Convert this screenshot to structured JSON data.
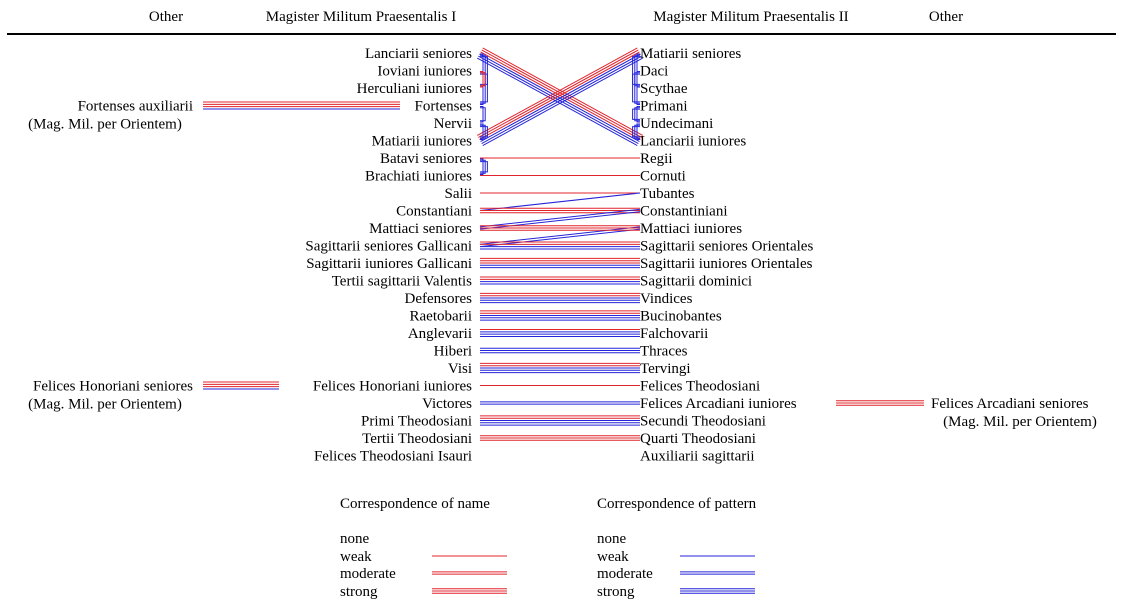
{
  "headers": {
    "other_left": "Other",
    "mm1": "Magister Militum Praesentalis I",
    "mm2": "Magister Militum Praesentalis II",
    "other_right": "Other"
  },
  "colors": {
    "name": "#e0242c",
    "pattern": "#2424d8"
  },
  "left_units": [
    "Lanciarii seniores",
    "Ioviani iuniores",
    "Herculiani iuniores",
    "Fortenses",
    "Nervii",
    "Matiarii iuniores",
    "Batavi seniores",
    "Brachiati iuniores",
    "Salii",
    "Constantiani",
    "Mattiaci seniores",
    "Sagittarii seniores Gallicani",
    "Sagittarii iuniores Gallicani",
    "Tertii sagittarii Valentis",
    "Defensores",
    "Raetobarii",
    "Anglevarii",
    "Hiberi",
    "Visi",
    "Felices Honoriani iuniores",
    "Victores",
    "Primi Theodosiani",
    "Tertii Theodosiani",
    "Felices Theodosiani Isauri"
  ],
  "right_units": [
    "Matiarii seniores",
    "Daci",
    "Scythae",
    "Primani",
    "Undecimani",
    "Lanciarii iuniores",
    "Regii",
    "Cornuti",
    "Tubantes",
    "Constantiniani",
    "Mattiaci iuniores",
    "Sagittarii seniores Orientales",
    "Sagittarii iuniores Orientales",
    "Sagittarii dominici",
    "Vindices",
    "Bucinobantes",
    "Falchovarii",
    "Thraces",
    "Tervingi",
    "Felices Theodosiani",
    "Felices Arcadiani iuniores",
    "Secundi Theodosiani",
    "Quarti Theodosiani",
    "Auxiliarii sagittarii"
  ],
  "other_units": [
    {
      "name": "Fortenses auxiliarii",
      "note": "(Mag. Mil. per Orientem)",
      "side": "left",
      "row": 3,
      "name_strength": 3,
      "pattern_strength": 1
    },
    {
      "name": "Felices Honoriani seniores",
      "note": "(Mag. Mil. per Orientem)",
      "side": "left",
      "row": 19,
      "name_strength": 3,
      "pattern_strength": 1
    },
    {
      "name": "Felices Arcadiani seniores",
      "note": "(Mag. Mil. per Orientem)",
      "side": "right",
      "row": 20,
      "name_strength": 3,
      "pattern_strength": 0
    }
  ],
  "cross_links": [
    {
      "from": 0,
      "to": 5,
      "name": 3,
      "pattern": 3
    },
    {
      "from": 5,
      "to": 0,
      "name": 3,
      "pattern": 3
    },
    {
      "from": 6,
      "to": 6,
      "name": 1,
      "pattern": 0
    },
    {
      "from": 7,
      "to": 7,
      "name": 1,
      "pattern": 0
    },
    {
      "from": 8,
      "to": 8,
      "name": 1,
      "pattern": 0
    },
    {
      "from": 9,
      "to": 8,
      "name": 0,
      "pattern": 1
    },
    {
      "from": 9,
      "to": 9,
      "name": 3,
      "pattern": 0
    },
    {
      "from": 10,
      "to": 9,
      "name": 0,
      "pattern": 2
    },
    {
      "from": 11,
      "to": 10,
      "name": 0,
      "pattern": 2
    },
    {
      "from": 10,
      "to": 10,
      "name": 3,
      "pattern": 0
    },
    {
      "from": 11,
      "to": 11,
      "name": 2,
      "pattern": 2
    },
    {
      "from": 12,
      "to": 12,
      "name": 3,
      "pattern": 2
    },
    {
      "from": 13,
      "to": 13,
      "name": 2,
      "pattern": 2
    },
    {
      "from": 14,
      "to": 14,
      "name": 2,
      "pattern": 3
    },
    {
      "from": 15,
      "to": 15,
      "name": 2,
      "pattern": 3
    },
    {
      "from": 16,
      "to": 16,
      "name": 1,
      "pattern": 3
    },
    {
      "from": 17,
      "to": 17,
      "name": 0,
      "pattern": 3
    },
    {
      "from": 18,
      "to": 18,
      "name": 2,
      "pattern": 3
    },
    {
      "from": 19,
      "to": 19,
      "name": 1,
      "pattern": 0
    },
    {
      "from": 20,
      "to": 20,
      "name": 0,
      "pattern": 2
    },
    {
      "from": 21,
      "to": 21,
      "name": 2,
      "pattern": 3
    },
    {
      "from": 22,
      "to": 22,
      "name": 3,
      "pattern": 0
    }
  ],
  "left_brackets": [
    {
      "a": 0,
      "b": 3,
      "pattern": 3
    },
    {
      "a": 1,
      "b": 2,
      "pattern": 3
    },
    {
      "a": 1,
      "b": 2,
      "name": 2
    },
    {
      "a": 4,
      "b": 5,
      "pattern": 3
    },
    {
      "a": 3,
      "b": 4,
      "pattern": 2
    },
    {
      "a": 6,
      "b": 7,
      "pattern": 3
    }
  ],
  "right_brackets": [
    {
      "a": 0,
      "b": 3,
      "pattern": 3
    },
    {
      "a": 1,
      "b": 2,
      "pattern": 3
    },
    {
      "a": 3,
      "b": 4,
      "pattern": 3
    },
    {
      "a": 4,
      "b": 5,
      "pattern": 3
    }
  ],
  "legend": {
    "name_title": "Correspondence of name",
    "pattern_title": "Correspondence of pattern",
    "levels": [
      "none",
      "weak",
      "moderate",
      "strong"
    ]
  }
}
